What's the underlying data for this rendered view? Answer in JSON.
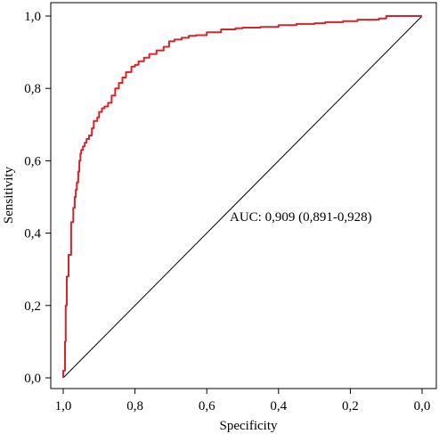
{
  "chart_data": {
    "type": "line",
    "xlabel": "Specificity",
    "ylabel": "Sensitivity",
    "xlim": [
      1.0,
      0.0
    ],
    "ylim": [
      0.0,
      1.0
    ],
    "x_reversed": true,
    "grid": false,
    "x_ticks": [
      1.0,
      0.8,
      0.6,
      0.4,
      0.2,
      0.0
    ],
    "x_tick_labels": [
      "1,0",
      "0,8",
      "0,6",
      "0,4",
      "0,2",
      "0,0"
    ],
    "y_ticks": [
      0.0,
      0.2,
      0.4,
      0.6,
      0.8,
      1.0
    ],
    "y_tick_labels": [
      "0,0",
      "0,2",
      "0,4",
      "0,6",
      "0,8",
      "1,0"
    ],
    "annotation": "AUC: 0,909 (0,891-0,928)",
    "colors": {
      "roc": "#d8232a",
      "reference": "#000000"
    },
    "series": [
      {
        "specificity": [
          1.0,
          1.0,
          0.995,
          0.995,
          0.993,
          0.993,
          0.99,
          0.99,
          0.985,
          0.985,
          0.978,
          0.978,
          0.972,
          0.968,
          0.965,
          0.962,
          0.958,
          0.955,
          0.952,
          0.95,
          0.945,
          0.94,
          0.935,
          0.928,
          0.92,
          0.915,
          0.905,
          0.9,
          0.892,
          0.885,
          0.875,
          0.865,
          0.855,
          0.845,
          0.835,
          0.825,
          0.81,
          0.8,
          0.79,
          0.775,
          0.76,
          0.74,
          0.72,
          0.705,
          0.69,
          0.67,
          0.65,
          0.63,
          0.6,
          0.56,
          0.52,
          0.5,
          0.45,
          0.4,
          0.35,
          0.3,
          0.27,
          0.22,
          0.18,
          0.12,
          0.1,
          0.05,
          0.0
        ],
        "sensitivity": [
          0.0,
          0.02,
          0.05,
          0.1,
          0.15,
          0.2,
          0.25,
          0.28,
          0.3,
          0.34,
          0.35,
          0.43,
          0.47,
          0.5,
          0.52,
          0.54,
          0.57,
          0.6,
          0.62,
          0.63,
          0.64,
          0.65,
          0.66,
          0.67,
          0.69,
          0.71,
          0.72,
          0.735,
          0.745,
          0.75,
          0.76,
          0.78,
          0.8,
          0.815,
          0.83,
          0.845,
          0.86,
          0.865,
          0.875,
          0.885,
          0.895,
          0.905,
          0.915,
          0.93,
          0.935,
          0.94,
          0.945,
          0.947,
          0.955,
          0.963,
          0.966,
          0.968,
          0.97,
          0.975,
          0.978,
          0.98,
          0.983,
          0.986,
          0.99,
          0.993,
          1.0,
          1.0,
          1.0
        ]
      }
    ]
  }
}
